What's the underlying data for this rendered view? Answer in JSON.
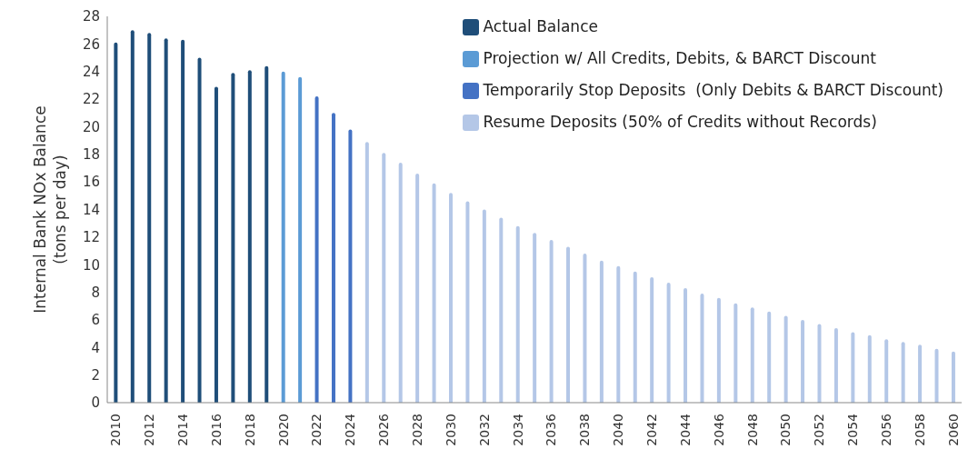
{
  "chart_data": {
    "type": "bar",
    "ylabel": "Internal Bank NOx Balance\n(tons per day)",
    "categories": [
      "2010",
      null,
      "2012",
      null,
      "2014",
      null,
      "2016",
      null,
      "2018",
      null,
      "2020",
      null,
      "2022",
      null,
      "2024",
      null,
      "2026",
      null,
      "2028",
      null,
      "2030",
      null,
      "2032",
      null,
      "2034",
      null,
      "2036",
      null,
      "2038",
      null,
      "2040",
      null,
      "2042",
      null,
      "2044",
      null,
      "2046",
      null,
      "2048",
      null,
      "2050",
      null,
      "2052",
      null,
      "2054",
      null,
      "2056",
      null,
      "2058",
      null,
      "2060"
    ],
    "series": [
      {
        "name": "Actual Balance",
        "color": "#1f4e79",
        "values": [
          26.1,
          27.0,
          26.8,
          26.4,
          26.3,
          25.0,
          22.9,
          23.9,
          24.1,
          24.4,
          null,
          null,
          null,
          null,
          null,
          null,
          null,
          null,
          null,
          null,
          null,
          null,
          null,
          null,
          null,
          null,
          null,
          null,
          null,
          null,
          null,
          null,
          null,
          null,
          null,
          null,
          null,
          null,
          null,
          null,
          null,
          null,
          null,
          null,
          null,
          null,
          null,
          null,
          null,
          null,
          null
        ]
      },
      {
        "name": "Projection w/ All Credits, Debits, & BARCT Discount",
        "color": "#5b9bd5",
        "values": [
          null,
          null,
          null,
          null,
          null,
          null,
          null,
          null,
          null,
          null,
          24.0,
          23.6,
          null,
          null,
          null,
          null,
          null,
          null,
          null,
          null,
          null,
          null,
          null,
          null,
          null,
          null,
          null,
          null,
          null,
          null,
          null,
          null,
          null,
          null,
          null,
          null,
          null,
          null,
          null,
          null,
          null,
          null,
          null,
          null,
          null,
          null,
          null,
          null,
          null,
          null,
          null
        ]
      },
      {
        "name": "Temporarily Stop Deposits  (Only Debits & BARCT Discount)",
        "color": "#4472c4",
        "values": [
          null,
          null,
          null,
          null,
          null,
          null,
          null,
          null,
          null,
          null,
          null,
          null,
          22.2,
          21.0,
          19.8,
          null,
          null,
          null,
          null,
          null,
          null,
          null,
          null,
          null,
          null,
          null,
          null,
          null,
          null,
          null,
          null,
          null,
          null,
          null,
          null,
          null,
          null,
          null,
          null,
          null,
          null,
          null,
          null,
          null,
          null,
          null,
          null,
          null,
          null,
          null,
          null
        ]
      },
      {
        "name": "Resume Deposits (50% of Credits without Records)",
        "color": "#b4c7e7",
        "values": [
          null,
          null,
          null,
          null,
          null,
          null,
          null,
          null,
          null,
          null,
          null,
          null,
          null,
          null,
          null,
          18.9,
          18.1,
          17.4,
          16.6,
          15.9,
          15.2,
          14.6,
          14.0,
          13.4,
          12.8,
          12.3,
          11.8,
          11.3,
          10.8,
          10.3,
          9.9,
          9.5,
          9.1,
          8.7,
          8.3,
          7.9,
          7.6,
          7.2,
          6.9,
          6.6,
          6.3,
          6.0,
          5.7,
          5.4,
          5.1,
          4.9,
          4.6,
          4.4,
          4.2,
          3.9,
          3.7
        ]
      }
    ],
    "stacked": true,
    "ylim": [
      0,
      28
    ],
    "yticks": [
      0,
      2,
      4,
      6,
      8,
      10,
      12,
      14,
      16,
      18,
      20,
      22,
      24,
      26,
      28
    ],
    "grid": false,
    "legend": "top right"
  }
}
